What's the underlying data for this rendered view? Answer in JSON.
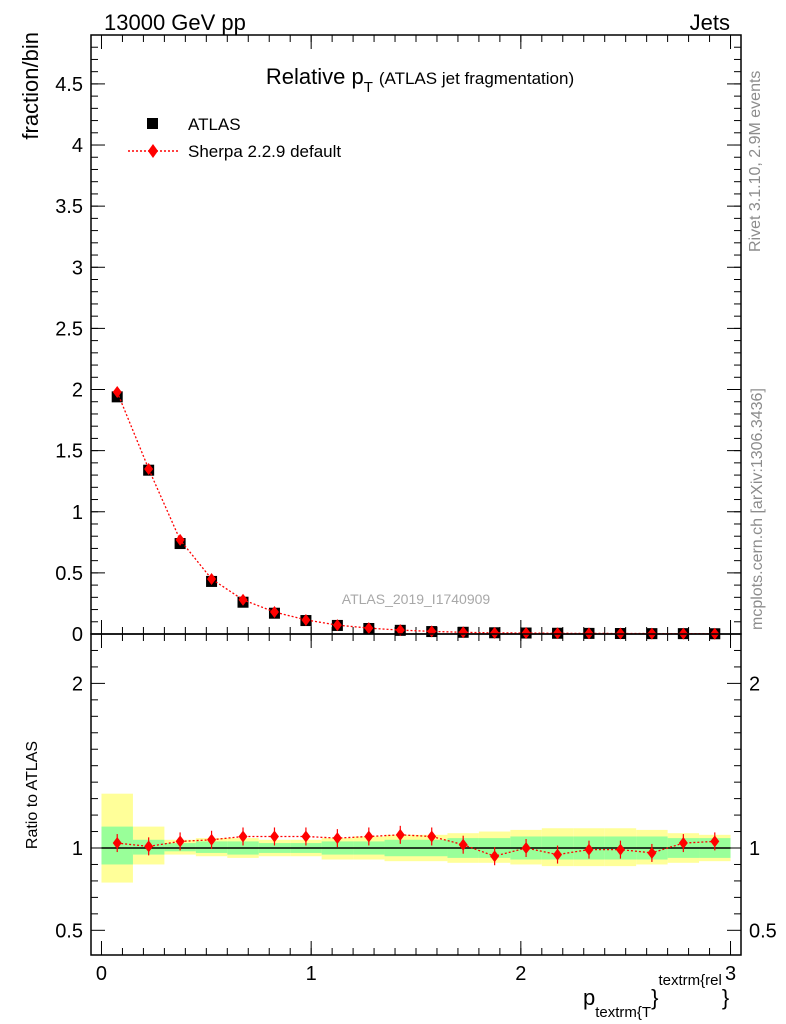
{
  "header": {
    "left": "13000 GeV pp",
    "right": "Jets"
  },
  "title": {
    "main": "Relative p",
    "sub": "T",
    "suffix": "(ATLAS jet fragmentation)"
  },
  "legend": {
    "atlas": "ATLAS",
    "sherpa": "Sherpa 2.2.9 default"
  },
  "side_text": {
    "rivet": "Rivet 3.1.10,  2.9M events",
    "mcplots": "mcplots.cern.ch [arXiv:1306.3436]"
  },
  "watermark": "ATLAS_2019_I1740909",
  "axes": {
    "ylabel_top": "fraction/bin",
    "ylabel_bottom": "Ratio to ATLAS",
    "xlabel_main": "p",
    "xlabel_sub": "textrm{T",
    "xlabel_brace": "}",
    "xlabel_sup": "textrm{rel",
    "xlabel_end": "}"
  },
  "colors": {
    "data": "#000000",
    "mc": "#ff0000",
    "band_inner": "#99ff99",
    "band_outer": "#ffff99"
  },
  "chart_data": {
    "type": "scatter",
    "x": [
      0.075,
      0.225,
      0.375,
      0.525,
      0.675,
      0.825,
      0.975,
      1.125,
      1.275,
      1.425,
      1.575,
      1.725,
      1.875,
      2.025,
      2.175,
      2.325,
      2.475,
      2.625,
      2.775,
      2.925
    ],
    "x_ticks": [
      {
        "v": 0,
        "label": "0"
      },
      {
        "v": 1,
        "label": "1"
      },
      {
        "v": 2,
        "label": "2"
      },
      {
        "v": 3,
        "label": "3"
      }
    ],
    "xlim": [
      -0.05,
      3.05
    ],
    "top": {
      "ylim": [
        0,
        4.9
      ],
      "y_ticks": [
        {
          "v": 0,
          "label": "0"
        },
        {
          "v": 0.5,
          "label": "0.5"
        },
        {
          "v": 1,
          "label": "1"
        },
        {
          "v": 1.5,
          "label": "1.5"
        },
        {
          "v": 2,
          "label": "2"
        },
        {
          "v": 2.5,
          "label": "2.5"
        },
        {
          "v": 3,
          "label": "3"
        },
        {
          "v": 3.5,
          "label": "3.5"
        },
        {
          "v": 4,
          "label": "4"
        },
        {
          "v": 4.5,
          "label": "4.5"
        }
      ],
      "series": [
        {
          "name": "ATLAS",
          "values": [
            1.94,
            1.34,
            0.74,
            0.43,
            0.26,
            0.17,
            0.11,
            0.07,
            0.045,
            0.03,
            0.02,
            0.014,
            0.01,
            0.008,
            0.006,
            0.005,
            0.004,
            0.003,
            0.003,
            0.002
          ]
        },
        {
          "name": "Sherpa 2.2.9 default",
          "values": [
            1.98,
            1.35,
            0.77,
            0.45,
            0.28,
            0.18,
            0.115,
            0.073,
            0.048,
            0.032,
            0.021,
            0.014,
            0.009,
            0.008,
            0.006,
            0.005,
            0.004,
            0.003,
            0.003,
            0.002
          ]
        }
      ]
    },
    "ratio": {
      "ylim": [
        0.35,
        2.3
      ],
      "y_ticks": [
        {
          "v": 0.5,
          "label": "0.5"
        },
        {
          "v": 1,
          "label": "1"
        },
        {
          "v": 2,
          "label": "2"
        }
      ],
      "mc_ratio": [
        1.03,
        1.01,
        1.04,
        1.05,
        1.07,
        1.07,
        1.07,
        1.06,
        1.07,
        1.08,
        1.07,
        1.02,
        0.95,
        1.0,
        0.96,
        0.99,
        0.99,
        0.97,
        1.03,
        1.04
      ],
      "band_inner": [
        [
          0.9,
          1.13
        ],
        [
          0.96,
          1.05
        ],
        [
          0.98,
          1.03
        ],
        [
          0.97,
          1.04
        ],
        [
          0.96,
          1.04
        ],
        [
          0.97,
          1.03
        ],
        [
          0.97,
          1.03
        ],
        [
          0.96,
          1.04
        ],
        [
          0.96,
          1.04
        ],
        [
          0.95,
          1.05
        ],
        [
          0.95,
          1.05
        ],
        [
          0.94,
          1.06
        ],
        [
          0.94,
          1.06
        ],
        [
          0.93,
          1.07
        ],
        [
          0.93,
          1.07
        ],
        [
          0.93,
          1.07
        ],
        [
          0.93,
          1.07
        ],
        [
          0.93,
          1.07
        ],
        [
          0.94,
          1.06
        ],
        [
          0.94,
          1.06
        ]
      ],
      "band_outer": [
        [
          0.79,
          1.33
        ],
        [
          0.9,
          1.13
        ],
        [
          0.96,
          1.05
        ],
        [
          0.95,
          1.06
        ],
        [
          0.94,
          1.06
        ],
        [
          0.95,
          1.05
        ],
        [
          0.95,
          1.05
        ],
        [
          0.93,
          1.06
        ],
        [
          0.93,
          1.07
        ],
        [
          0.92,
          1.08
        ],
        [
          0.92,
          1.08
        ],
        [
          0.91,
          1.09
        ],
        [
          0.91,
          1.1
        ],
        [
          0.9,
          1.11
        ],
        [
          0.89,
          1.12
        ],
        [
          0.89,
          1.12
        ],
        [
          0.89,
          1.12
        ],
        [
          0.9,
          1.11
        ],
        [
          0.91,
          1.09
        ],
        [
          0.92,
          1.08
        ]
      ]
    }
  }
}
